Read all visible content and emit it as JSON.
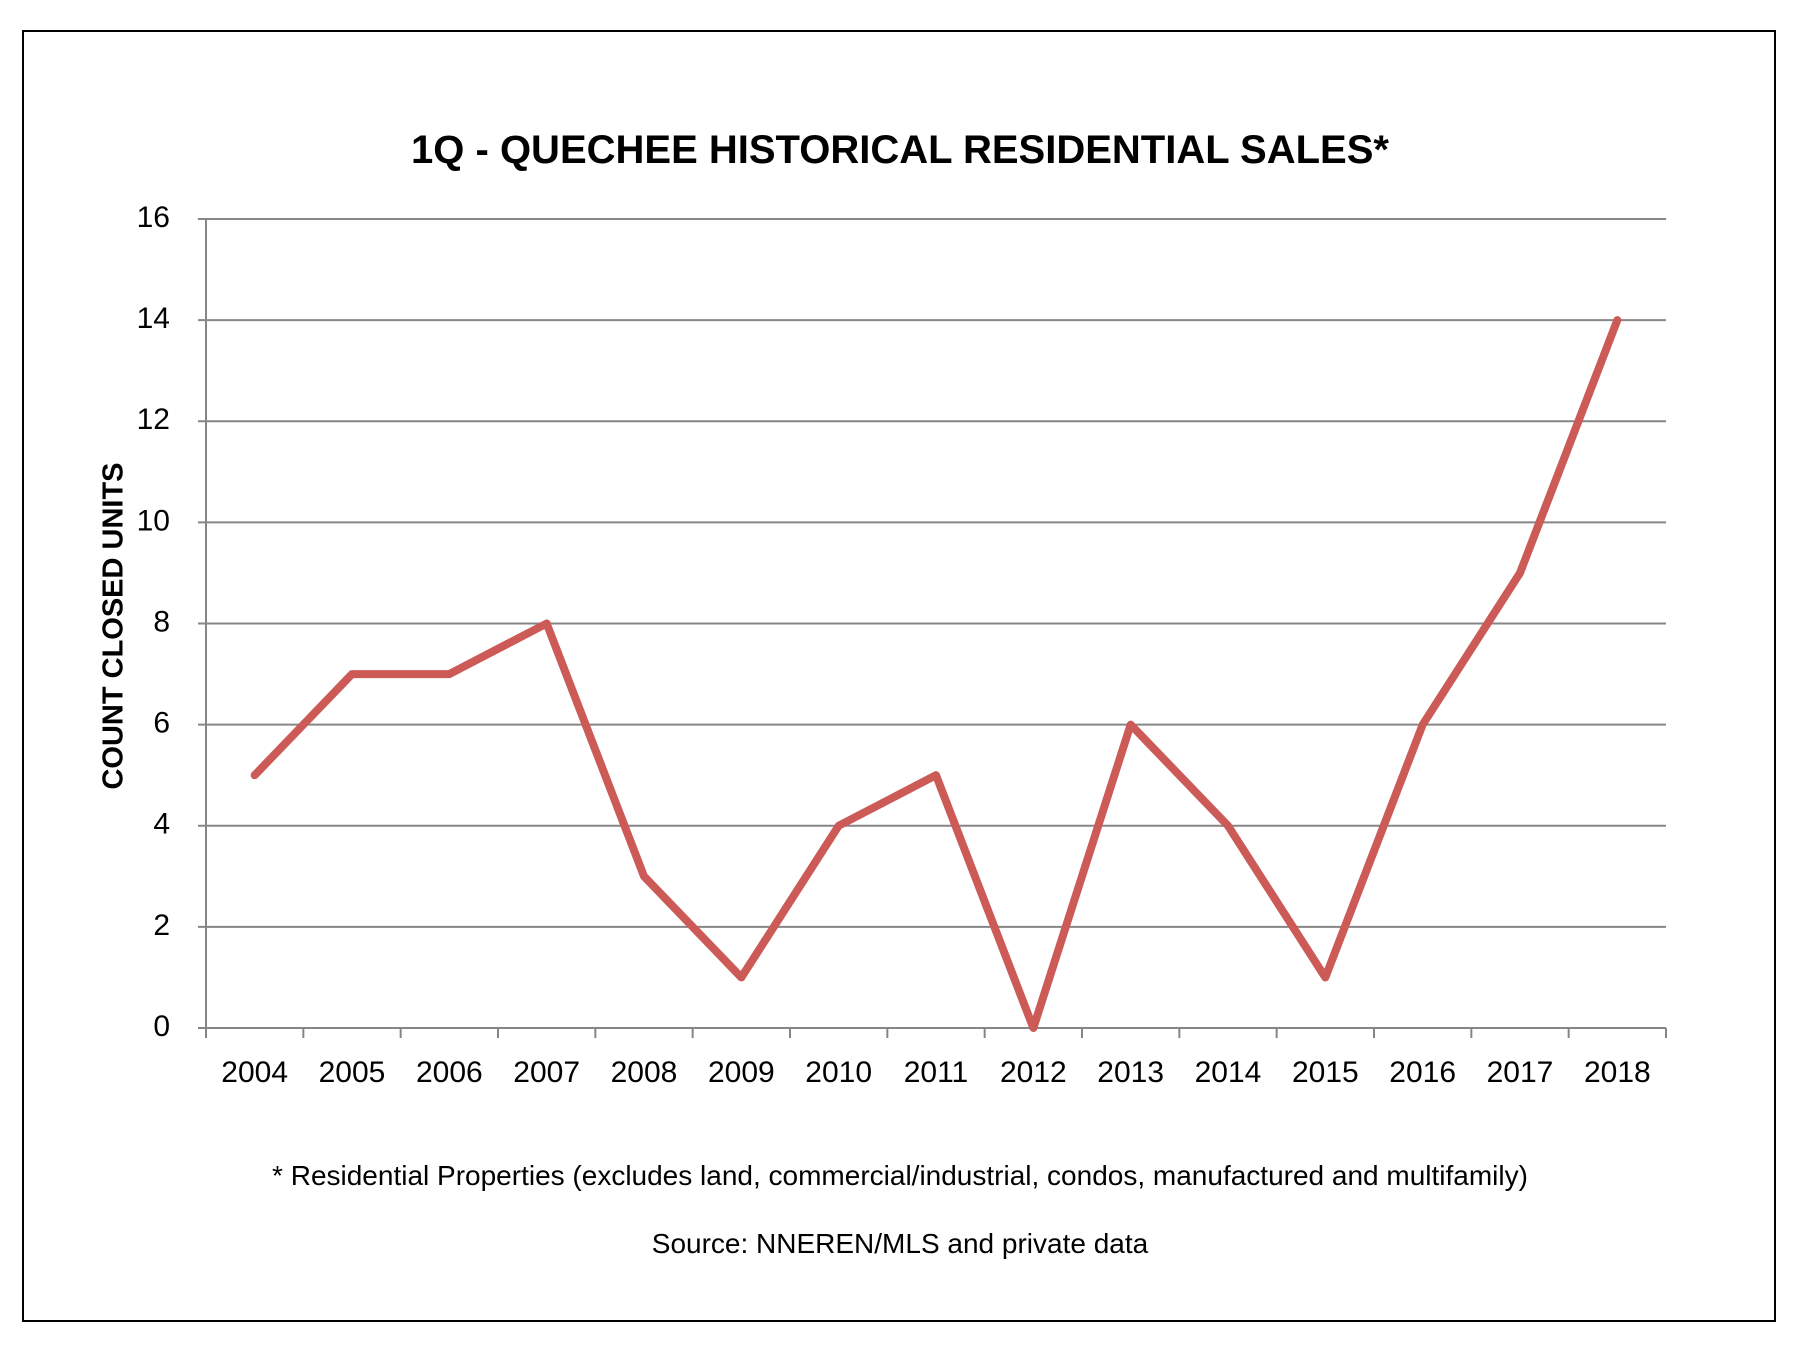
{
  "chart_data": {
    "type": "line",
    "title": "1Q - QUECHEE HISTORICAL RESIDENTIAL SALES*",
    "xlabel": "",
    "ylabel": "COUNT CLOSED UNITS",
    "ylim": [
      0,
      16
    ],
    "yticks": [
      0,
      2,
      4,
      6,
      8,
      10,
      12,
      14,
      16
    ],
    "grid": true,
    "categories": [
      "2004",
      "2005",
      "2006",
      "2007",
      "2008",
      "2009",
      "2010",
      "2011",
      "2012",
      "2013",
      "2014",
      "2015",
      "2016",
      "2017",
      "2018"
    ],
    "series": [
      {
        "values": [
          5,
          7,
          7,
          8,
          3,
          1,
          4,
          5,
          0,
          6,
          4,
          1,
          6,
          9,
          14
        ],
        "color": "#CC5A57"
      }
    ]
  },
  "notes": {
    "footnote": "* Residential Properties (excludes land, commercial/industrial, condos, manufactured and multifamily)",
    "source": "Source: NNEREN/MLS and private data"
  },
  "colors": {
    "line": "#CC5A57",
    "grid": "#868686",
    "axis": "#868686",
    "border": "#000000"
  }
}
